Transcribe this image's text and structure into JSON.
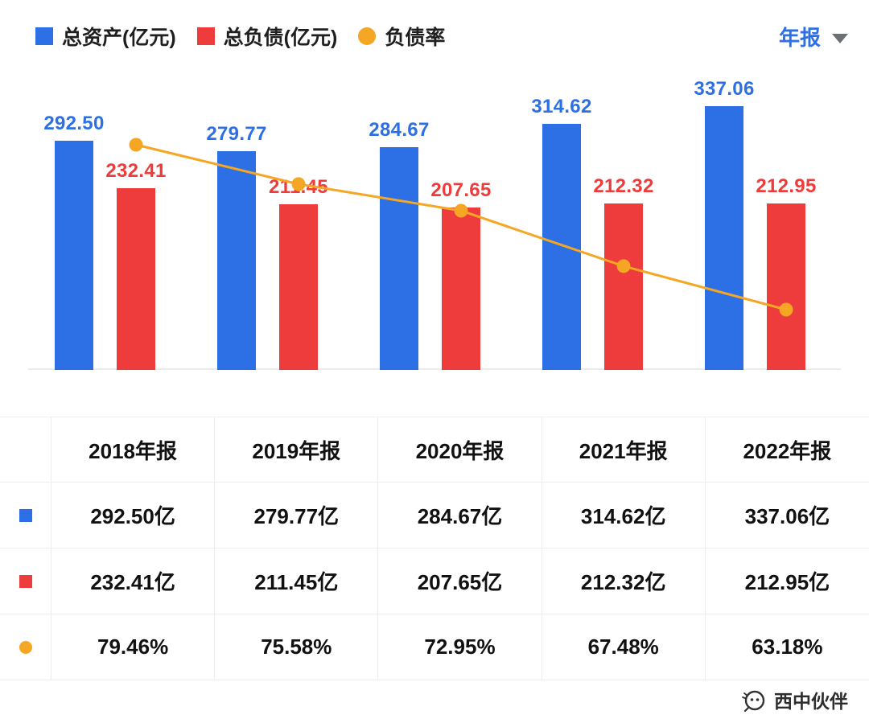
{
  "legend": {
    "items": [
      {
        "label": "总资产(亿元)",
        "color": "#2D6FE4",
        "shape": "square"
      },
      {
        "label": "总负债(亿元)",
        "color": "#EE3B3B",
        "shape": "square"
      },
      {
        "label": "负债率",
        "color": "#F5A623",
        "shape": "circle"
      }
    ]
  },
  "period_selector": {
    "label": "年报",
    "color": "#2D6FE4"
  },
  "chart_data": {
    "type": "bar",
    "subtype": "grouped-bars-with-line",
    "categories": [
      "2018年报",
      "2019年报",
      "2020年报",
      "2021年报",
      "2022年报"
    ],
    "series": [
      {
        "name": "总资产(亿元)",
        "type": "bar",
        "color": "#2D6FE4",
        "values": [
          292.5,
          279.77,
          284.67,
          314.62,
          337.06
        ],
        "unit": "亿元"
      },
      {
        "name": "总负债(亿元)",
        "type": "bar",
        "color": "#EE3B3B",
        "values": [
          232.41,
          211.45,
          207.65,
          212.32,
          212.95
        ],
        "unit": "亿元"
      },
      {
        "name": "负债率",
        "type": "line",
        "color": "#F5A623",
        "values": [
          79.46,
          75.58,
          72.95,
          67.48,
          63.18
        ],
        "unit": "%"
      }
    ],
    "value_labels": true,
    "legend_position": "top",
    "grid": false
  },
  "table": {
    "corner": "",
    "headers": [
      "2018年报",
      "2019年报",
      "2020年报",
      "2021年报",
      "2022年报"
    ],
    "rows": [
      {
        "icon": "blue-square-icon",
        "color": "#2D6FE4",
        "shape": "square",
        "series": "总资产(亿元)",
        "cells": [
          "292.50亿",
          "279.77亿",
          "284.67亿",
          "314.62亿",
          "337.06亿"
        ]
      },
      {
        "icon": "red-square-icon",
        "color": "#EE3B3B",
        "shape": "square",
        "series": "总负债(亿元)",
        "cells": [
          "232.41亿",
          "211.45亿",
          "207.65亿",
          "212.32亿",
          "212.95亿"
        ]
      },
      {
        "icon": "orange-circle-icon",
        "color": "#F5A623",
        "shape": "circle",
        "series": "负债率",
        "cells": [
          "79.46%",
          "75.58%",
          "72.95%",
          "67.48%",
          "63.18%"
        ]
      }
    ]
  },
  "watermark": {
    "text": "西中伙伴"
  }
}
